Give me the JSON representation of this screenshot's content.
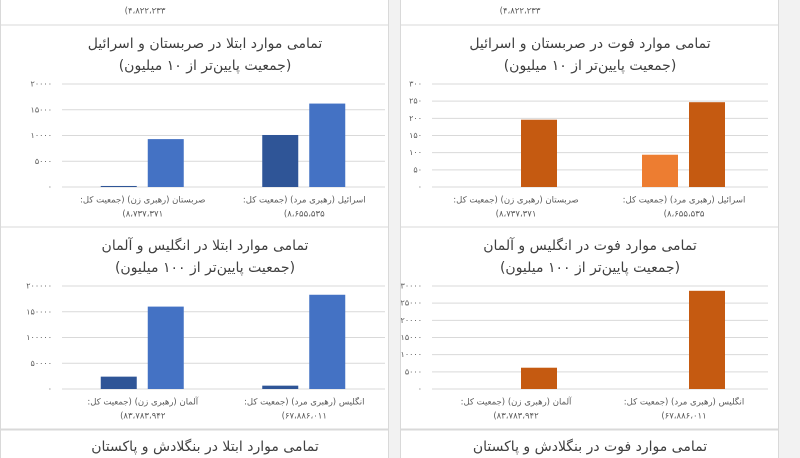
{
  "cut_off_top": [
    "۴،۸۲۲،۲۳۳)",
    "۴،۸۲۲،۲۳۳)"
  ],
  "cut_off_bottom": [
    "تمامی موارد ابتلا در بنگلادش و پاکستان",
    "تمامی موارد فوت در بنگلادش و پاکستان"
  ],
  "chart_data": [
    {
      "type": "bar",
      "title": "تمامی موارد ابتلا در صربستان و اسرائیل",
      "subtitle": "(جمعیت پایین‌تر از ۱۰ میلیون)",
      "categories": [
        [
          "صربستان (رهبری زن) (جمعیت کل:",
          "۸،۷۳۷،۳۷۱)"
        ],
        [
          "اسرائیل (رهبری مرد) (جمعیت کل:",
          "۸،۶۵۵،۵۳۵)"
        ]
      ],
      "series": [
        {
          "color": "#2f5597",
          "values": [
            200,
            10100
          ]
        },
        {
          "color": "#4472c4",
          "values": [
            9300,
            16200
          ]
        }
      ],
      "ylim": [
        0,
        20000
      ],
      "grid": true,
      "yticks": [
        {
          "value": 0,
          "label": "۰"
        },
        {
          "value": 5000,
          "label": "۵۰۰۰"
        },
        {
          "value": 10000,
          "label": "۱۰۰۰۰"
        },
        {
          "value": 15000,
          "label": "۱۵۰۰۰"
        },
        {
          "value": 20000,
          "label": "۲۰۰۰۰"
        }
      ]
    },
    {
      "type": "bar",
      "title": "تمامی موارد فوت در صربستان و اسرائیل",
      "subtitle": "(جمعیت پایین‌تر از ۱۰ میلیون)",
      "categories": [
        [
          "صربستان (رهبری زن) (جمعیت کل:",
          "۸،۷۳۷،۳۷۱)"
        ],
        [
          "اسرائیل (رهبری مرد) (جمعیت کل:",
          "۸،۶۵۵،۵۳۵)"
        ]
      ],
      "series": [
        {
          "color": "#ed7d31",
          "values": [
            0,
            94
          ]
        },
        {
          "color": "#c55a11",
          "values": [
            196,
            247
          ]
        }
      ],
      "ylim": [
        0,
        300
      ],
      "grid": true,
      "yticks": [
        {
          "value": 0,
          "label": "۰"
        },
        {
          "value": 50,
          "label": "۵۰"
        },
        {
          "value": 100,
          "label": "۱۰۰"
        },
        {
          "value": 150,
          "label": "۱۵۰"
        },
        {
          "value": 200,
          "label": "۲۰۰"
        },
        {
          "value": 250,
          "label": "۲۵۰"
        },
        {
          "value": 300,
          "label": "۳۰۰"
        }
      ]
    },
    {
      "type": "bar",
      "title": "تمامی موارد ابتلا در انگلیس و آلمان",
      "subtitle": "(جمعیت پایین‌تر از ۱۰۰ میلیون)",
      "categories": [
        [
          "آلمان (رهبری زن) (جمعیت کل:",
          "۸۳،۷۸۳،۹۴۲)"
        ],
        [
          "انگلیس (رهبری مرد) (جمعیت کل:",
          "۶۷،۸۸۶،۰۱۱)"
        ]
      ],
      "series": [
        {
          "color": "#2f5597",
          "values": [
            24000,
            6500
          ]
        },
        {
          "color": "#4472c4",
          "values": [
            160000,
            183000
          ]
        }
      ],
      "ylim": [
        0,
        200000
      ],
      "grid": true,
      "yticks": [
        {
          "value": 0,
          "label": "۰"
        },
        {
          "value": 50000,
          "label": "۵۰۰۰۰"
        },
        {
          "value": 100000,
          "label": "۱۰۰۰۰۰"
        },
        {
          "value": 150000,
          "label": "۱۵۰۰۰۰"
        },
        {
          "value": 200000,
          "label": "۲۰۰۰۰۰"
        }
      ]
    },
    {
      "type": "bar",
      "title": "تمامی موارد فوت در انگلیس و آلمان",
      "subtitle": "(جمعیت پایین‌تر از ۱۰۰ میلیون)",
      "categories": [
        [
          "آلمان (رهبری زن) (جمعیت کل:",
          "۸۳،۷۸۳،۹۴۲)"
        ],
        [
          "انگلیس (رهبری مرد) (جمعیت کل:",
          "۶۷،۸۸۶،۰۱۱)"
        ]
      ],
      "series": [
        {
          "color": "#ed7d31",
          "values": [
            0,
            0
          ]
        },
        {
          "color": "#c55a11",
          "values": [
            6200,
            28600
          ]
        }
      ],
      "ylim": [
        0,
        30000
      ],
      "grid": true,
      "yticks": [
        {
          "value": 0,
          "label": "۰"
        },
        {
          "value": 5000,
          "label": "۵۰۰۰"
        },
        {
          "value": 10000,
          "label": "۱۰۰۰۰"
        },
        {
          "value": 15000,
          "label": "۱۵۰۰۰"
        },
        {
          "value": 20000,
          "label": "۲۰۰۰۰"
        },
        {
          "value": 25000,
          "label": "۲۵۰۰۰"
        },
        {
          "value": 30000,
          "label": "۳۰۰۰۰"
        }
      ]
    }
  ]
}
